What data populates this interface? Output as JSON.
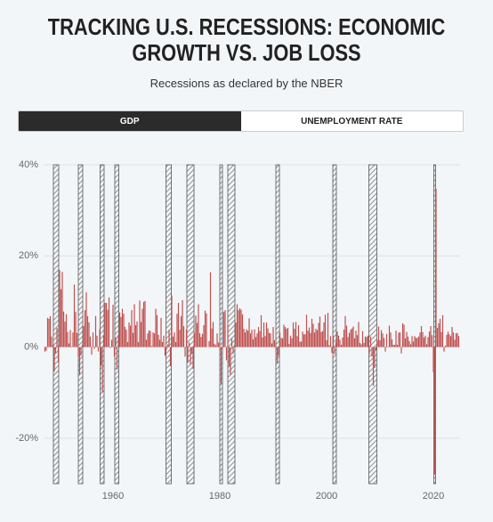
{
  "tabs": [
    "GDP",
    "UNEMPLOYMENT RATE"
  ],
  "chart_data": {
    "type": "bar",
    "title": "TRACKING U.S. RECESSIONS: ECONOMIC GROWTH VS. JOB LOSS",
    "subtitle": "Recessions as declared by the NBER",
    "color": "#c0504d",
    "recession_color": "#555555",
    "xlim": [
      1947,
      2025
    ],
    "xticks": [
      1960,
      1980,
      2000,
      2020
    ],
    "ylim": [
      -30,
      40
    ],
    "yticks": [
      {
        "value": 40,
        "label": "40%"
      },
      {
        "value": 20,
        "label": "20%"
      },
      {
        "value": 0,
        "label": "0%"
      },
      {
        "value": -20,
        "label": "-20%"
      }
    ],
    "grid": true,
    "recessions": [
      [
        1948.83,
        1949.83
      ],
      [
        1953.5,
        1954.33
      ],
      [
        1957.58,
        1958.33
      ],
      [
        1960.33,
        1961.08
      ],
      [
        1969.92,
        1970.92
      ],
      [
        1973.83,
        1975.17
      ],
      [
        1980.0,
        1980.5
      ],
      [
        1981.5,
        1982.83
      ],
      [
        1990.5,
        1991.17
      ],
      [
        2001.17,
        2001.83
      ],
      [
        2007.92,
        2009.42
      ],
      [
        2020.08,
        2020.25
      ]
    ],
    "x": [
      1947.25,
      1947.5,
      1947.75,
      1948,
      1948.25,
      1948.5,
      1948.75,
      1949,
      1949.25,
      1949.5,
      1949.75,
      1950,
      1950.25,
      1950.5,
      1950.75,
      1951,
      1951.25,
      1951.5,
      1951.75,
      1952,
      1952.25,
      1952.5,
      1952.75,
      1953,
      1953.25,
      1953.5,
      1953.75,
      1954,
      1954.25,
      1954.5,
      1954.75,
      1955,
      1955.25,
      1955.5,
      1955.75,
      1956,
      1956.25,
      1956.5,
      1956.75,
      1957,
      1957.25,
      1957.5,
      1957.75,
      1958,
      1958.25,
      1958.5,
      1958.75,
      1959,
      1959.25,
      1959.5,
      1959.75,
      1960,
      1960.25,
      1960.5,
      1960.75,
      1961,
      1961.25,
      1961.5,
      1961.75,
      1962,
      1962.25,
      1962.5,
      1962.75,
      1963,
      1963.25,
      1963.5,
      1963.75,
      1964,
      1964.25,
      1964.5,
      1964.75,
      1965,
      1965.25,
      1965.5,
      1965.75,
      1966,
      1966.25,
      1966.5,
      1966.75,
      1967,
      1967.25,
      1967.5,
      1967.75,
      1968,
      1968.25,
      1968.5,
      1968.75,
      1969,
      1969.25,
      1969.5,
      1969.75,
      1970,
      1970.25,
      1970.5,
      1970.75,
      1971,
      1971.25,
      1971.5,
      1971.75,
      1972,
      1972.25,
      1972.5,
      1972.75,
      1973,
      1973.25,
      1973.5,
      1973.75,
      1974,
      1974.25,
      1974.5,
      1974.75,
      1975,
      1975.25,
      1975.5,
      1975.75,
      1976,
      1976.25,
      1976.5,
      1976.75,
      1977,
      1977.25,
      1977.5,
      1977.75,
      1978,
      1978.25,
      1978.5,
      1978.75,
      1979,
      1979.25,
      1979.5,
      1979.75,
      1980,
      1980.25,
      1980.5,
      1980.75,
      1981,
      1981.25,
      1981.5,
      1981.75,
      1982,
      1982.25,
      1982.5,
      1982.75,
      1983,
      1983.25,
      1983.5,
      1983.75,
      1984,
      1984.25,
      1984.5,
      1984.75,
      1985,
      1985.25,
      1985.5,
      1985.75,
      1986,
      1986.25,
      1986.5,
      1986.75,
      1987,
      1987.25,
      1987.5,
      1987.75,
      1988,
      1988.25,
      1988.5,
      1988.75,
      1989,
      1989.25,
      1989.5,
      1989.75,
      1990,
      1990.25,
      1990.5,
      1990.75,
      1991,
      1991.25,
      1991.5,
      1991.75,
      1992,
      1992.25,
      1992.5,
      1992.75,
      1993,
      1993.25,
      1993.5,
      1993.75,
      1994,
      1994.25,
      1994.5,
      1994.75,
      1995,
      1995.25,
      1995.5,
      1995.75,
      1996,
      1996.25,
      1996.5,
      1996.75,
      1997,
      1997.25,
      1997.5,
      1997.75,
      1998,
      1998.25,
      1998.5,
      1998.75,
      1999,
      1999.25,
      1999.5,
      1999.75,
      2000,
      2000.25,
      2000.5,
      2000.75,
      2001,
      2001.25,
      2001.5,
      2001.75,
      2002,
      2002.25,
      2002.5,
      2002.75,
      2003,
      2003.25,
      2003.5,
      2003.75,
      2004,
      2004.25,
      2004.5,
      2004.75,
      2005,
      2005.25,
      2005.5,
      2005.75,
      2006,
      2006.25,
      2006.5,
      2006.75,
      2007,
      2007.25,
      2007.5,
      2007.75,
      2008,
      2008.25,
      2008.5,
      2008.75,
      2009,
      2009.25,
      2009.5,
      2009.75,
      2010,
      2010.25,
      2010.5,
      2010.75,
      2011,
      2011.25,
      2011.5,
      2011.75,
      2012,
      2012.25,
      2012.5,
      2012.75,
      2013,
      2013.25,
      2013.5,
      2013.75,
      2014,
      2014.25,
      2014.5,
      2014.75,
      2015,
      2015.25,
      2015.5,
      2015.75,
      2016,
      2016.25,
      2016.5,
      2016.75,
      2017,
      2017.25,
      2017.5,
      2017.75,
      2018,
      2018.25,
      2018.5,
      2018.75,
      2019,
      2019.25,
      2019.5,
      2019.75,
      2020,
      2020.25,
      2020.5,
      2020.75,
      2021,
      2021.25,
      2021.5,
      2021.75,
      2022,
      2022.25,
      2022.5,
      2022.75,
      2023,
      2023.25,
      2023.5,
      2023.75,
      2024,
      2024.25,
      2024.5,
      2024.75
    ],
    "values": [
      -1.0,
      -0.8,
      6.4,
      6.2,
      6.8,
      2.3,
      0.5,
      -5.4,
      -1.4,
      4.2,
      -3.4,
      16.9,
      12.7,
      16.5,
      7.8,
      5.6,
      7.2,
      3.3,
      0.8,
      3.7,
      0.1,
      3.2,
      13.7,
      7.7,
      3.1,
      -2.2,
      -6.1,
      -1.9,
      0.5,
      4.6,
      8.1,
      12.0,
      6.8,
      5.4,
      2.3,
      -1.7,
      3.2,
      -0.4,
      6.8,
      2.5,
      -1.0,
      3.9,
      -4.1,
      -10.0,
      2.6,
      9.7,
      9.7,
      8.2,
      10.9,
      -0.2,
      1.6,
      9.3,
      -2.1,
      2.1,
      -5.0,
      2.7,
      7.6,
      6.6,
      8.4,
      7.3,
      4.4,
      3.8,
      1.1,
      5.4,
      4.7,
      8.1,
      3.1,
      9.4,
      4.8,
      5.6,
      1.1,
      10.2,
      5.5,
      8.4,
      9.9,
      10.1,
      1.6,
      3.0,
      3.7,
      3.5,
      0.2,
      3.2,
      3.0,
      8.4,
      7.0,
      2.7,
      1.6,
      6.4,
      1.1,
      2.5,
      -1.9,
      -0.6,
      0.6,
      3.7,
      -4.2,
      11.3,
      2.3,
      3.2,
      1.1,
      7.3,
      9.7,
      3.8,
      6.8,
      10.3,
      4.6,
      -2.1,
      3.9,
      -3.4,
      1.0,
      -3.7,
      -1.5,
      -4.8,
      3.1,
      6.9,
      5.3,
      9.4,
      3.0,
      2.2,
      2.9,
      4.8,
      8.0,
      7.4,
      0.0,
      1.3,
      16.4,
      4.1,
      5.5,
      0.7,
      0.4,
      3.0,
      1.0,
      1.3,
      -8.0,
      -0.5,
      7.7,
      8.1,
      -2.9,
      4.9,
      -4.3,
      -6.1,
      1.8,
      -1.5,
      0.2,
      5.4,
      9.4,
      8.1,
      8.5,
      8.2,
      7.2,
      4.0,
      3.2,
      3.9,
      3.6,
      6.3,
      3.0,
      3.8,
      1.7,
      3.9,
      2.2,
      3.0,
      4.4,
      3.5,
      7.0,
      2.1,
      5.4,
      2.4,
      5.4,
      4.1,
      3.1,
      3.0,
      0.8,
      4.4,
      1.5,
      0.3,
      -3.6,
      -1.9,
      3.2,
      2.0,
      1.9,
      4.9,
      4.4,
      4.0,
      4.2,
      0.7,
      2.5,
      1.9,
      5.4,
      4.0,
      5.5,
      2.4,
      4.8,
      1.2,
      1.2,
      3.4,
      2.8,
      2.8,
      7.1,
      3.6,
      4.3,
      3.1,
      6.2,
      5.1,
      3.2,
      4.0,
      3.7,
      5.3,
      6.7,
      3.3,
      3.5,
      5.4,
      7.1,
      1.5,
      7.5,
      0.4,
      2.4,
      -1.3,
      2.5,
      -1.6,
      1.1,
      3.4,
      2.5,
      1.6,
      0.5,
      2.1,
      3.8,
      6.8,
      4.7,
      2.2,
      3.1,
      3.8,
      4.1,
      4.5,
      1.9,
      3.6,
      2.6,
      5.5,
      0.9,
      0.6,
      3.5,
      0.9,
      2.3,
      2.2,
      2.5,
      -1.6,
      2.3,
      -2.1,
      -8.5,
      -4.6,
      -0.7,
      1.5,
      4.5,
      1.5,
      3.7,
      3.0,
      2.0,
      -1.0,
      2.9,
      -0.1,
      4.7,
      3.2,
      1.7,
      0.5,
      0.5,
      3.6,
      0.5,
      3.2,
      3.2,
      -1.4,
      5.2,
      4.9,
      1.9,
      3.3,
      2.3,
      1.3,
      0.6,
      2.4,
      1.2,
      2.4,
      2.0,
      2.0,
      2.3,
      3.2,
      4.6,
      3.3,
      2.1,
      2.5,
      0.6,
      2.2,
      3.4,
      4.6,
      2.6,
      -5.5,
      -28.0,
      34.8,
      4.2,
      5.2,
      6.2,
      3.3,
      7.0,
      -1.0,
      0.3,
      2.7,
      3.4,
      2.8,
      2.4,
      4.4,
      3.2,
      1.6,
      3.0,
      3.1,
      2.4
    ]
  }
}
